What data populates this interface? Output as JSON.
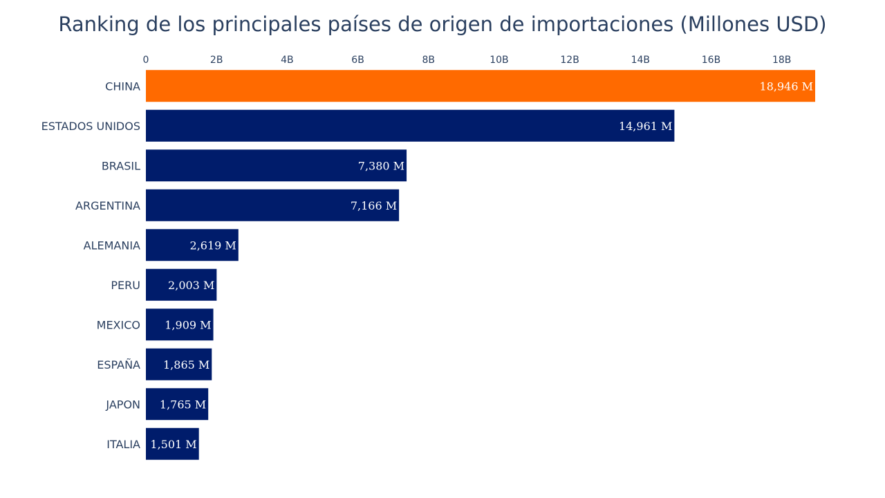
{
  "chart_data": {
    "type": "bar",
    "orientation": "horizontal",
    "title": "Ranking de los principales países de origen de importaciones (Millones USD)",
    "categories": [
      "CHINA",
      "ESTADOS UNIDOS",
      "BRASIL",
      "ARGENTINA",
      "ALEMANIA",
      "PERU",
      "MEXICO",
      "ESPAÑA",
      "JAPON",
      "ITALIA"
    ],
    "values": [
      18946,
      14961,
      7380,
      7166,
      2619,
      2003,
      1909,
      1865,
      1765,
      1501
    ],
    "value_labels": [
      "18,946 M",
      "14,961 M",
      "7,380 M",
      "7,166 M",
      "2,619 M",
      "2,003 M",
      "1,909 M",
      "1,865 M",
      "1,765 M",
      "1,501 M"
    ],
    "value_unit": "Millones USD",
    "xaxis_position": "top",
    "xticks": [
      0,
      2000,
      4000,
      6000,
      8000,
      10000,
      12000,
      14000,
      16000,
      18000
    ],
    "xtick_labels": [
      "0",
      "2B",
      "4B",
      "6B",
      "8B",
      "10B",
      "12B",
      "14B",
      "16B",
      "18B"
    ],
    "xlim": [
      0,
      18946
    ],
    "grid": false,
    "colors": {
      "highlight": "#ff6a00",
      "default": "#001c6b",
      "text": "#2a3f5f",
      "bar_label": "#ffffff"
    }
  }
}
